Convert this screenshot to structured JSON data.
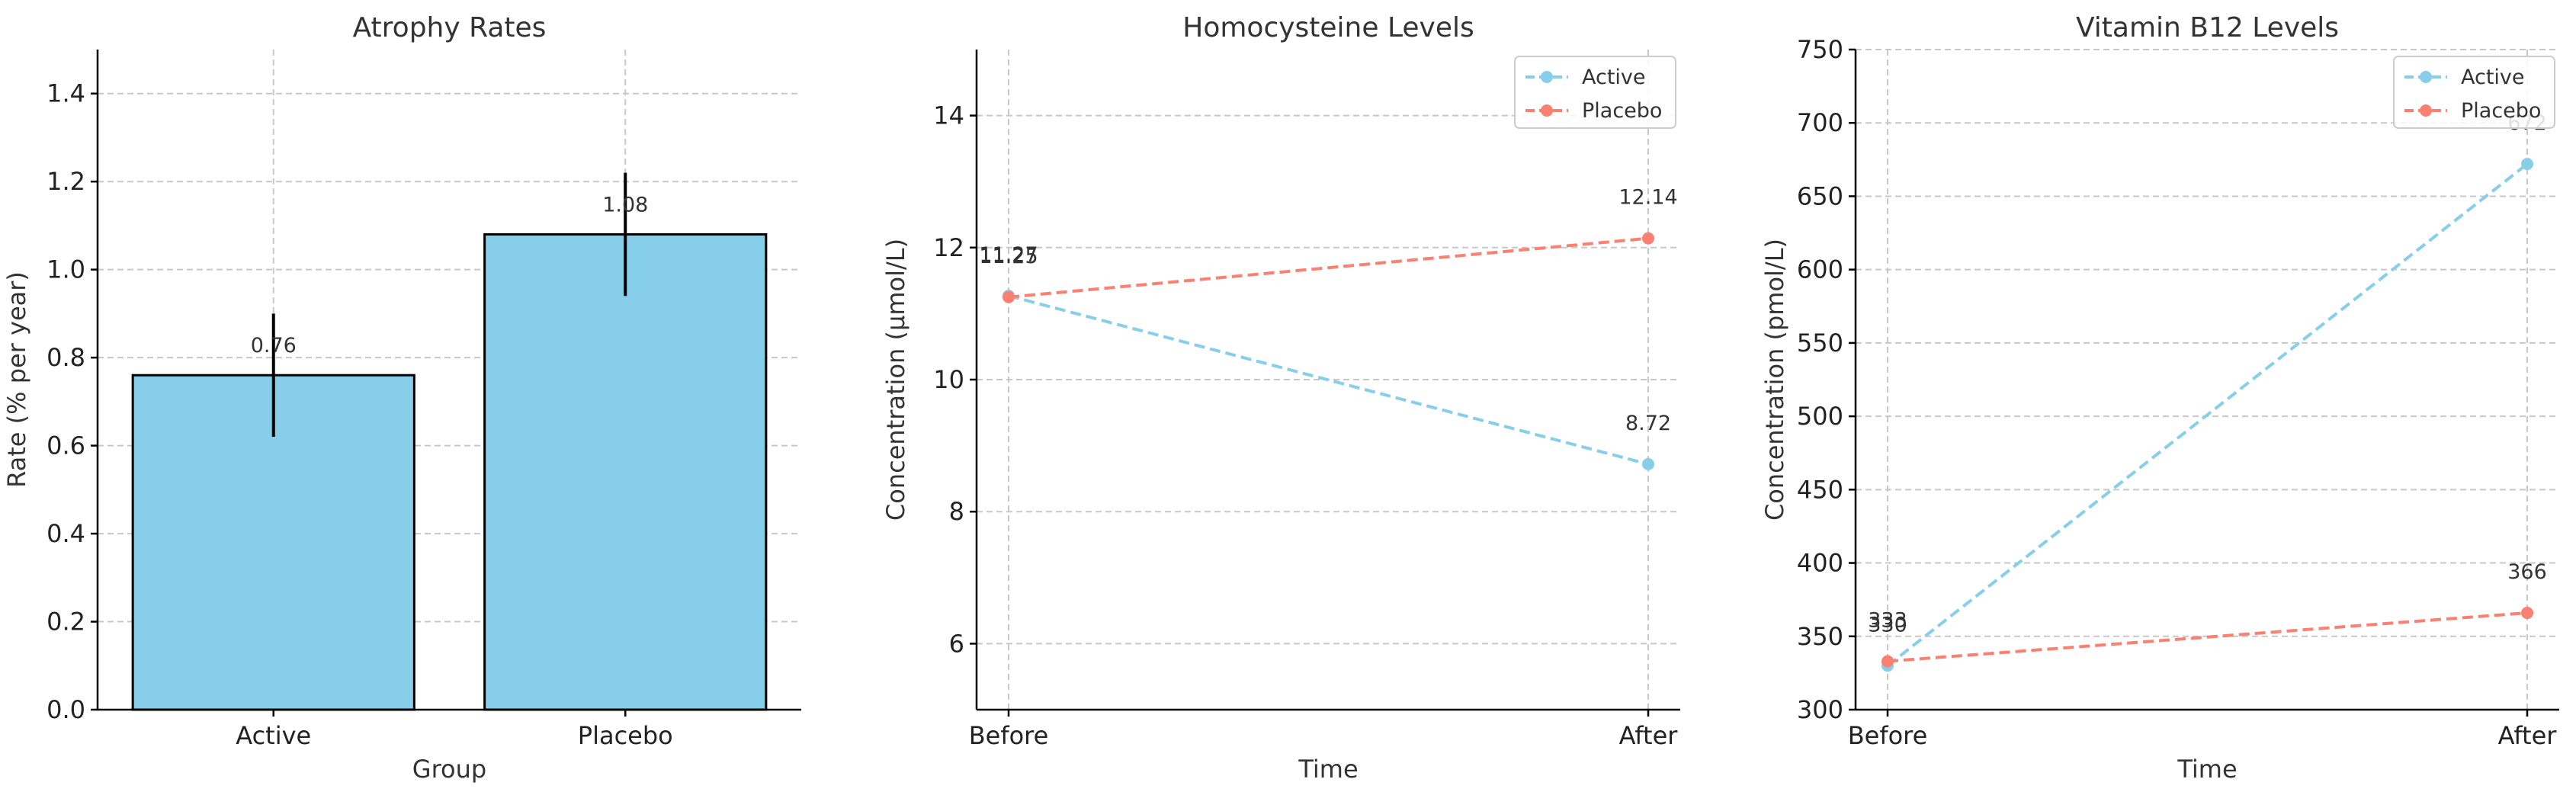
{
  "chart_data": [
    {
      "type": "bar",
      "title": "Atrophy Rates",
      "xlabel": "Group",
      "ylabel": "Rate (% per year)",
      "categories": [
        "Active",
        "Placebo"
      ],
      "values": [
        0.76,
        1.08
      ],
      "errors": [
        0.14,
        0.14
      ],
      "data_labels": [
        "0.76",
        "1.08"
      ],
      "ylim": [
        0,
        1.5
      ],
      "yticks": [
        0.0,
        0.2,
        0.4,
        0.6,
        0.8,
        1.0,
        1.2,
        1.4
      ],
      "ytick_labels": [
        "0.0",
        "0.2",
        "0.4",
        "0.6",
        "0.8",
        "1.0",
        "1.2",
        "1.4"
      ],
      "bar_color": "#87CEEB",
      "grid": true
    },
    {
      "type": "line",
      "title": "Homocysteine Levels",
      "xlabel": "Time",
      "ylabel": "Concentration (µmol/L)",
      "categories": [
        "Before",
        "After"
      ],
      "ylim": [
        5,
        15
      ],
      "yticks": [
        6,
        8,
        10,
        12,
        14
      ],
      "ytick_labels": [
        "6",
        "8",
        "10",
        "12",
        "14"
      ],
      "series": [
        {
          "name": "Active",
          "values": [
            11.27,
            8.72
          ],
          "labels": [
            "11.27",
            "8.72"
          ],
          "color": "#87CEEB"
        },
        {
          "name": "Placebo",
          "values": [
            11.25,
            12.14
          ],
          "labels": [
            "11.25",
            "12.14"
          ],
          "color": "#FA8072"
        }
      ],
      "legend": "top-right",
      "grid": true
    },
    {
      "type": "line",
      "title": "Vitamin B12 Levels",
      "xlabel": "Time",
      "ylabel": "Concentration (pmol/L)",
      "categories": [
        "Before",
        "After"
      ],
      "ylim": [
        300,
        750
      ],
      "yticks": [
        300,
        350,
        400,
        450,
        500,
        550,
        600,
        650,
        700,
        750
      ],
      "ytick_labels": [
        "300",
        "350",
        "400",
        "450",
        "500",
        "550",
        "600",
        "650",
        "700",
        "750"
      ],
      "series": [
        {
          "name": "Active",
          "values": [
            330,
            672
          ],
          "labels": [
            "330",
            "672"
          ],
          "color": "#87CEEB"
        },
        {
          "name": "Placebo",
          "values": [
            333,
            366
          ],
          "labels": [
            "333",
            "366"
          ],
          "color": "#FA8072"
        }
      ],
      "legend": "top-right",
      "grid": true
    }
  ]
}
